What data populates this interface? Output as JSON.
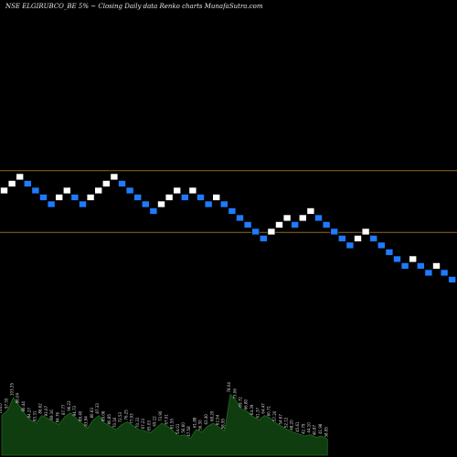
{
  "header": {
    "symbol": "NSE ELGIRUBCO_BE",
    "brick_size": "5%",
    "chart_kind": "Closing Daily data  Renko  charts",
    "site": "MunafaSutra.com"
  },
  "colors": {
    "background": "#000000",
    "up_brick": "#ffffff",
    "down_brick": "#1e7bff",
    "brick_outline": "#000000",
    "hline": "#8b6a1e",
    "volume_fill": "#0f3d0f",
    "volume_line": "#1f6b1f",
    "volume_label": "#d8d8d8"
  },
  "chart_data": {
    "type": "renko",
    "brick_size_pct": 5,
    "bricks": [
      {
        "x": 0,
        "level": 18,
        "dir": "up"
      },
      {
        "x": 1,
        "level": 19,
        "dir": "up"
      },
      {
        "x": 2,
        "level": 20,
        "dir": "up"
      },
      {
        "x": 3,
        "level": 19,
        "dir": "down"
      },
      {
        "x": 4,
        "level": 18,
        "dir": "down"
      },
      {
        "x": 5,
        "level": 17,
        "dir": "down"
      },
      {
        "x": 6,
        "level": 16,
        "dir": "down"
      },
      {
        "x": 7,
        "level": 17,
        "dir": "up"
      },
      {
        "x": 8,
        "level": 18,
        "dir": "up"
      },
      {
        "x": 9,
        "level": 17,
        "dir": "down"
      },
      {
        "x": 10,
        "level": 16,
        "dir": "down"
      },
      {
        "x": 11,
        "level": 17,
        "dir": "up"
      },
      {
        "x": 12,
        "level": 18,
        "dir": "up"
      },
      {
        "x": 13,
        "level": 19,
        "dir": "up"
      },
      {
        "x": 14,
        "level": 20,
        "dir": "up"
      },
      {
        "x": 15,
        "level": 19,
        "dir": "down"
      },
      {
        "x": 16,
        "level": 18,
        "dir": "down"
      },
      {
        "x": 17,
        "level": 17,
        "dir": "down"
      },
      {
        "x": 18,
        "level": 16,
        "dir": "down"
      },
      {
        "x": 19,
        "level": 15,
        "dir": "down"
      },
      {
        "x": 20,
        "level": 16,
        "dir": "up"
      },
      {
        "x": 21,
        "level": 17,
        "dir": "up"
      },
      {
        "x": 22,
        "level": 18,
        "dir": "up"
      },
      {
        "x": 23,
        "level": 17,
        "dir": "down"
      },
      {
        "x": 24,
        "level": 18,
        "dir": "up"
      },
      {
        "x": 25,
        "level": 17,
        "dir": "down"
      },
      {
        "x": 26,
        "level": 16,
        "dir": "down"
      },
      {
        "x": 27,
        "level": 17,
        "dir": "up"
      },
      {
        "x": 28,
        "level": 16,
        "dir": "down"
      },
      {
        "x": 29,
        "level": 15,
        "dir": "down"
      },
      {
        "x": 30,
        "level": 14,
        "dir": "down"
      },
      {
        "x": 31,
        "level": 13,
        "dir": "down"
      },
      {
        "x": 32,
        "level": 12,
        "dir": "down"
      },
      {
        "x": 33,
        "level": 11,
        "dir": "down"
      },
      {
        "x": 34,
        "level": 12,
        "dir": "up"
      },
      {
        "x": 35,
        "level": 13,
        "dir": "up"
      },
      {
        "x": 36,
        "level": 14,
        "dir": "up"
      },
      {
        "x": 37,
        "level": 13,
        "dir": "down"
      },
      {
        "x": 38,
        "level": 14,
        "dir": "up"
      },
      {
        "x": 39,
        "level": 15,
        "dir": "up"
      },
      {
        "x": 40,
        "level": 14,
        "dir": "down"
      },
      {
        "x": 41,
        "level": 13,
        "dir": "down"
      },
      {
        "x": 42,
        "level": 12,
        "dir": "down"
      },
      {
        "x": 43,
        "level": 11,
        "dir": "down"
      },
      {
        "x": 44,
        "level": 10,
        "dir": "down"
      },
      {
        "x": 45,
        "level": 11,
        "dir": "up"
      },
      {
        "x": 46,
        "level": 12,
        "dir": "up"
      },
      {
        "x": 47,
        "level": 11,
        "dir": "down"
      },
      {
        "x": 48,
        "level": 10,
        "dir": "down"
      },
      {
        "x": 49,
        "level": 9,
        "dir": "down"
      },
      {
        "x": 50,
        "level": 8,
        "dir": "down"
      },
      {
        "x": 51,
        "level": 7,
        "dir": "down"
      },
      {
        "x": 52,
        "level": 8,
        "dir": "up"
      },
      {
        "x": 53,
        "level": 7,
        "dir": "down"
      },
      {
        "x": 54,
        "level": 6,
        "dir": "down"
      },
      {
        "x": 55,
        "level": 7,
        "dir": "up"
      },
      {
        "x": 56,
        "level": 6,
        "dir": "down"
      },
      {
        "x": 57,
        "level": 5,
        "dir": "down"
      }
    ],
    "horizontal_lines": [
      {
        "level": 20.5
      },
      {
        "level": 11.5
      }
    ],
    "volume": [
      {
        "value": 0.62,
        "label": "104.0"
      },
      {
        "value": 0.7,
        "label": "97.55"
      },
      {
        "value": 0.9,
        "label": "103.35"
      },
      {
        "value": 0.78,
        "label": "86.04"
      },
      {
        "value": 0.65,
        "label": "86.44"
      },
      {
        "value": 0.55,
        "label": "84.27"
      },
      {
        "value": 0.5,
        "label": "83.31"
      },
      {
        "value": 0.62,
        "label": "86.62"
      },
      {
        "value": 0.58,
        "label": "93.07"
      },
      {
        "value": 0.52,
        "label": "89.16"
      },
      {
        "value": 0.48,
        "label": "84.76"
      },
      {
        "value": 0.6,
        "label": "87.77"
      },
      {
        "value": 0.66,
        "label": "96.22"
      },
      {
        "value": 0.58,
        "label": "94.73"
      },
      {
        "value": 0.5,
        "label": "89.40"
      },
      {
        "value": 0.42,
        "label": "83.94"
      },
      {
        "value": 0.55,
        "label": "80.63"
      },
      {
        "value": 0.62,
        "label": "87.33"
      },
      {
        "value": 0.5,
        "label": "89.06"
      },
      {
        "value": 0.45,
        "label": "80.85"
      },
      {
        "value": 0.4,
        "label": "70.16"
      },
      {
        "value": 0.48,
        "label": "72.53"
      },
      {
        "value": 0.52,
        "label": "76.25"
      },
      {
        "value": 0.46,
        "label": "77.93"
      },
      {
        "value": 0.4,
        "label": "70.31"
      },
      {
        "value": 0.38,
        "label": "67.23"
      },
      {
        "value": 0.35,
        "label": "65.03"
      },
      {
        "value": 0.42,
        "label": "69.12"
      },
      {
        "value": 0.5,
        "label": "73.90"
      },
      {
        "value": 0.45,
        "label": "67.01"
      },
      {
        "value": 0.38,
        "label": "61.55"
      },
      {
        "value": 0.3,
        "label": "54.01"
      },
      {
        "value": 0.32,
        "label": "56.60"
      },
      {
        "value": 0.26,
        "label": "47.58"
      },
      {
        "value": 0.4,
        "label": "61.88"
      },
      {
        "value": 0.36,
        "label": "56.30"
      },
      {
        "value": 0.45,
        "label": "63.40"
      },
      {
        "value": 0.5,
        "label": "68.20"
      },
      {
        "value": 0.44,
        "label": "62.54"
      },
      {
        "value": 0.38,
        "label": "58.95"
      },
      {
        "value": 0.95,
        "label": "78.04"
      },
      {
        "value": 0.85,
        "label": "73.06"
      },
      {
        "value": 0.72,
        "label": "69.72"
      },
      {
        "value": 0.68,
        "label": "66.80"
      },
      {
        "value": 0.6,
        "label": "64.39"
      },
      {
        "value": 0.55,
        "label": "61.37"
      },
      {
        "value": 0.62,
        "label": "64.47"
      },
      {
        "value": 0.58,
        "label": "60.71"
      },
      {
        "value": 0.5,
        "label": "57.20"
      },
      {
        "value": 0.45,
        "label": "54.67"
      },
      {
        "value": 0.4,
        "label": "52.12"
      },
      {
        "value": 0.36,
        "label": "48.20"
      },
      {
        "value": 0.33,
        "label": "45.61"
      },
      {
        "value": 0.3,
        "label": "42.79"
      },
      {
        "value": 0.32,
        "label": "44.10"
      },
      {
        "value": 0.28,
        "label": "40.87"
      },
      {
        "value": 0.3,
        "label": "41.98"
      },
      {
        "value": 0.25,
        "label": "38.95"
      }
    ]
  }
}
